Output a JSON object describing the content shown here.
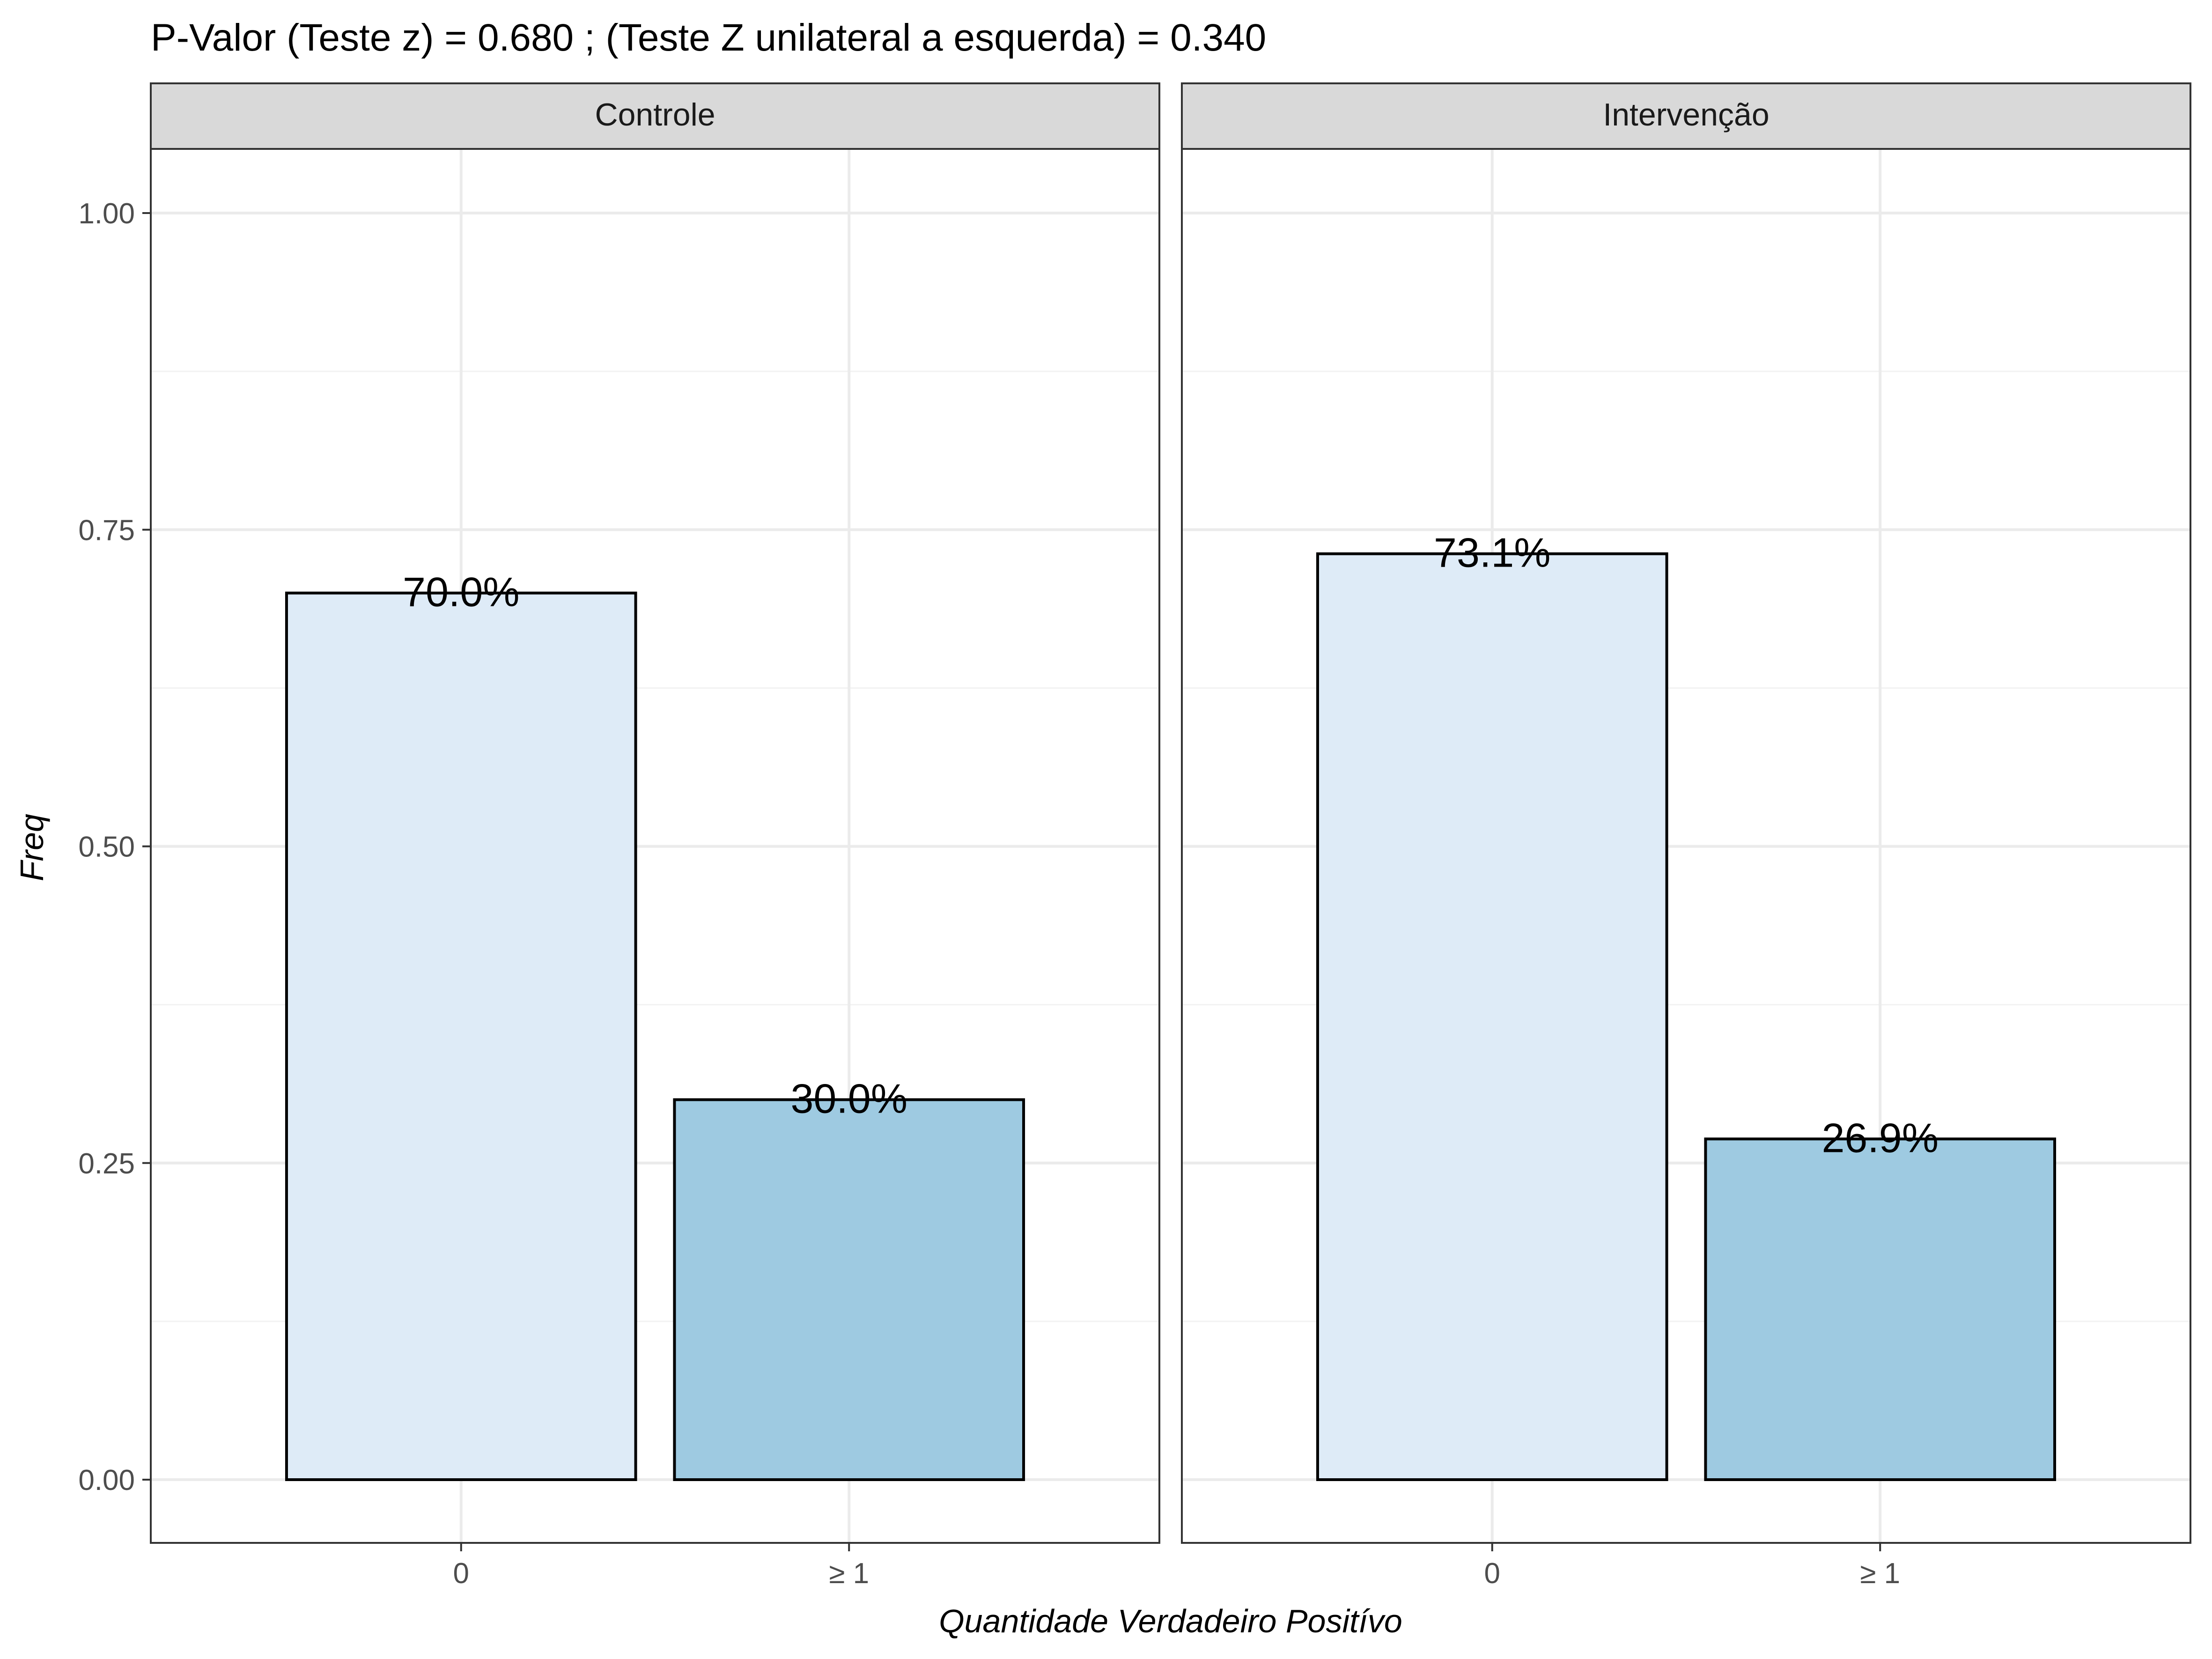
{
  "chart_data": {
    "type": "bar",
    "title": "P-Valor (Teste z) = 0.680 ; (Teste Z unilateral a esquerda) = 0.340",
    "xlabel": "Quantidade Verdadeiro Positívo",
    "ylabel": "Freq",
    "ylim": [
      0,
      1.05
    ],
    "yticks": [
      0,
      0.25,
      0.5,
      0.75,
      1.0
    ],
    "ytick_labels": [
      "0.00",
      "0.25",
      "0.50",
      "0.75",
      "1.00"
    ],
    "categories": [
      "0",
      "≥ 1"
    ],
    "grid": true,
    "bar_colors": [
      "#deebf7",
      "#9ecae1"
    ],
    "bar_outline": "#000000",
    "panels": [
      {
        "name": "Controle",
        "values": [
          0.7,
          0.3
        ],
        "labels": [
          "70.0%",
          "30.0%"
        ]
      },
      {
        "name": "Intervenção",
        "values": [
          0.731,
          0.269
        ],
        "labels": [
          "73.1%",
          "26.9%"
        ]
      }
    ]
  }
}
